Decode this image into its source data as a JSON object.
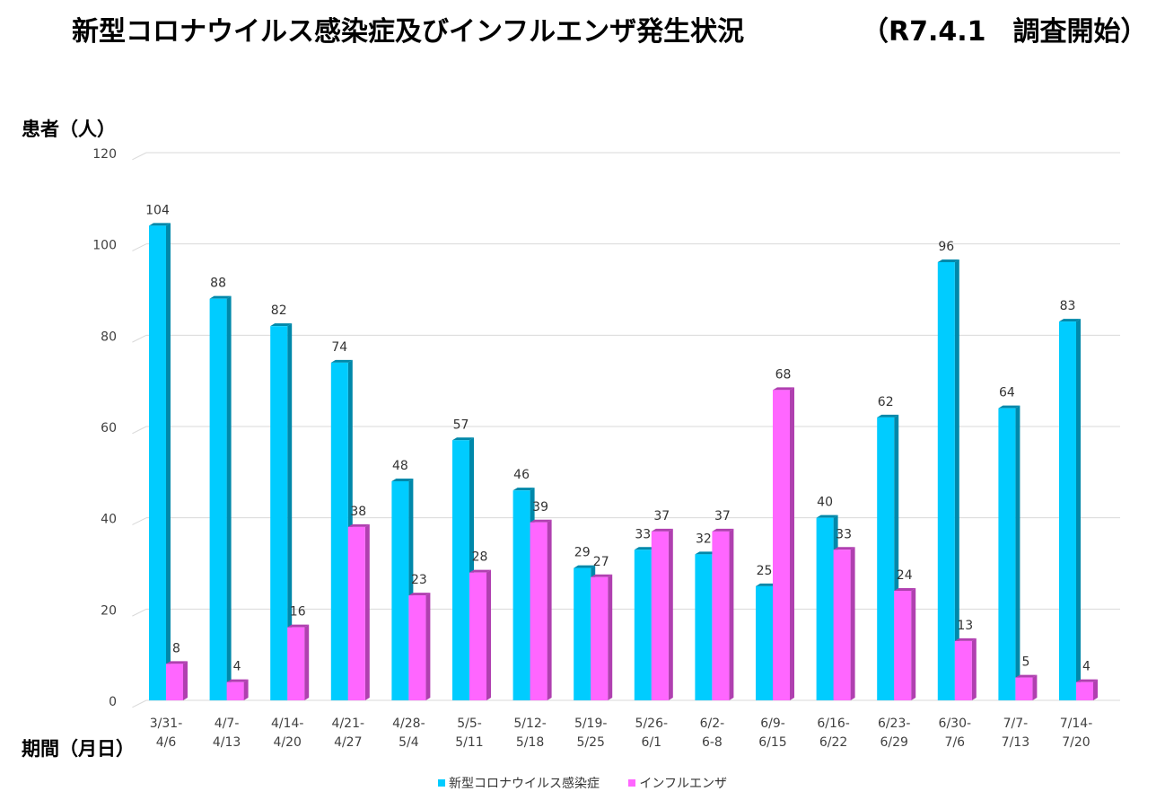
{
  "title": {
    "main": "新型コロナウイルス感染症及びインフルエンザ発生状況",
    "sub": "（R7.4.1　調査開始）"
  },
  "axis": {
    "y_title": "患者（人）",
    "x_title": "期間（月日）"
  },
  "colors": {
    "covid": "#00CCFF",
    "covid_side": "#0088AA",
    "flu": "#FF66FF",
    "flu_side": "#B040B0",
    "grid": "#D9D9D9"
  },
  "chart_data": {
    "type": "bar",
    "ylim": [
      0,
      120
    ],
    "yticks": [
      0,
      20,
      40,
      60,
      80,
      100,
      120
    ],
    "grid": true,
    "legend_position": "bottom",
    "categories": [
      [
        "3/31-",
        "4/6"
      ],
      [
        "4/7-",
        "4/13"
      ],
      [
        "4/14-",
        "4/20"
      ],
      [
        "4/21-",
        "4/27"
      ],
      [
        "4/28-",
        "5/4"
      ],
      [
        "5/5-",
        "5/11"
      ],
      [
        "5/12-",
        "5/18"
      ],
      [
        "5/19-",
        "5/25"
      ],
      [
        "5/26-",
        "6/1"
      ],
      [
        "6/2-",
        "6-8"
      ],
      [
        "6/9-",
        "6/15"
      ],
      [
        "6/16-",
        "6/22"
      ],
      [
        "6/23-",
        "6/29"
      ],
      [
        "6/30-",
        "7/6"
      ],
      [
        "7/7-",
        "7/13"
      ],
      [
        "7/14-",
        "7/20"
      ]
    ],
    "series": [
      {
        "name": "新型コロナウイルス感染症",
        "values": [
          104,
          88,
          82,
          74,
          48,
          57,
          46,
          29,
          33,
          32,
          25,
          40,
          62,
          96,
          64,
          83
        ]
      },
      {
        "name": "インフルエンザ",
        "values": [
          8,
          4,
          16,
          38,
          23,
          28,
          39,
          27,
          37,
          37,
          68,
          33,
          24,
          13,
          5,
          4
        ]
      }
    ]
  }
}
